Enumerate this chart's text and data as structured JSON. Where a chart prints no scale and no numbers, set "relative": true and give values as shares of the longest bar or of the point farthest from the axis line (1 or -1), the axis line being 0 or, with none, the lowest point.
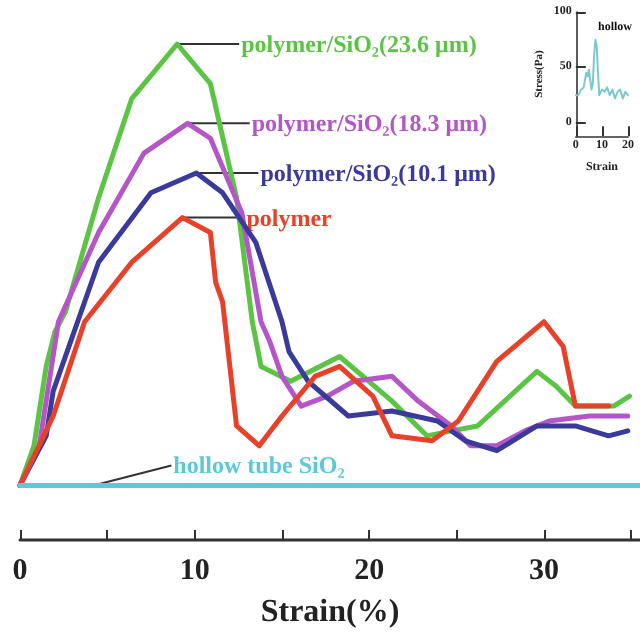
{
  "chart_data": [
    {
      "type": "line",
      "xlabel": "Strain(%)",
      "relative": true,
      "xlim": [
        0,
        35.5
      ],
      "xticks": [
        0,
        {
          "value": 5,
          "label": null
        },
        10,
        {
          "value": 15,
          "label": null
        },
        20,
        {
          "value": 25,
          "label": null
        },
        30,
        {
          "value": 35,
          "label": null
        }
      ],
      "grid": false,
      "legend": false,
      "marker": "none",
      "line_style": "solid",
      "series": [
        {
          "name": "polymer/SiO₂(23.6 μm)",
          "color": "#5cc444",
          "x": [
            0,
            0.8,
            1.5,
            2,
            2.6,
            4.5,
            6.4,
            9,
            10.9,
            12.4,
            13.3,
            13.8,
            15.5,
            18.3,
            21.3,
            23.3,
            24.7,
            26.2,
            29.6,
            30.7,
            31.8,
            32.6,
            34,
            34.9
          ],
          "values": [
            0.11,
            0.19,
            0.35,
            0.42,
            0.46,
            0.69,
            0.89,
            1.0,
            0.92,
            0.69,
            0.44,
            0.35,
            0.32,
            0.37,
            0.28,
            0.21,
            0.22,
            0.23,
            0.34,
            0.31,
            0.27,
            0.27,
            0.27,
            0.29
          ]
        },
        {
          "name": "polymer/SiO₂(18.3 μm)",
          "color": "#b455c8",
          "x": [
            0,
            1.1,
            2.2,
            4.5,
            7.1,
            9.6,
            10.9,
            12.7,
            13.8,
            14.3,
            15,
            16.1,
            17.6,
            19.1,
            21.3,
            22.8,
            24.7,
            25.8,
            27.3,
            28.9,
            30.3,
            32.6,
            34.8
          ],
          "values": [
            0.11,
            0.19,
            0.44,
            0.62,
            0.78,
            0.84,
            0.81,
            0.66,
            0.44,
            0.4,
            0.33,
            0.27,
            0.29,
            0.32,
            0.33,
            0.28,
            0.23,
            0.19,
            0.19,
            0.22,
            0.24,
            0.25,
            0.25
          ]
        },
        {
          "name": "polymer/SiO₂(10.1 μm)",
          "color": "#3a3a9a",
          "x": [
            0,
            1.5,
            1.9,
            4.5,
            7.5,
            10.1,
            11.6,
            13.5,
            15,
            15.4,
            16.5,
            18.8,
            21.3,
            23.9,
            25.5,
            27.3,
            29.6,
            31.8,
            33.7,
            34.8
          ],
          "values": [
            0.11,
            0.21,
            0.3,
            0.56,
            0.7,
            0.74,
            0.7,
            0.6,
            0.44,
            0.38,
            0.32,
            0.25,
            0.26,
            0.24,
            0.2,
            0.18,
            0.23,
            0.23,
            0.21,
            0.22
          ]
        },
        {
          "name": "polymer",
          "color": "#e8412a",
          "x": [
            0,
            1.9,
            3.7,
            6.4,
            9.3,
            10.9,
            11.2,
            11.6,
            12.4,
            13.7,
            15,
            16.9,
            18.3,
            20.2,
            21.3,
            23.6,
            25.1,
            27.3,
            30,
            31.1,
            31.8,
            33.7
          ],
          "values": [
            0.11,
            0.25,
            0.44,
            0.56,
            0.65,
            0.62,
            0.52,
            0.48,
            0.23,
            0.19,
            0.25,
            0.33,
            0.35,
            0.29,
            0.21,
            0.2,
            0.24,
            0.36,
            0.44,
            0.39,
            0.27,
            0.27
          ]
        },
        {
          "name": "hollow tube SiO₂",
          "color": "#5cc8d8",
          "x": [
            0,
            4.2,
            35.5
          ],
          "values": [
            0.11,
            0.11,
            0.11
          ]
        }
      ]
    },
    {
      "type": "line",
      "xlabel": "Strain",
      "ylabel": "Stress(Pa)",
      "annotations": [
        "hollow"
      ],
      "xlim": [
        0,
        20
      ],
      "ylim": [
        -12,
        100
      ],
      "xticks": [
        0,
        10,
        20
      ],
      "yticks": [
        0,
        50,
        100
      ],
      "grid": false,
      "legend": false,
      "marker": "none",
      "series": [
        {
          "color": "#7cc8d0",
          "x": [
            0,
            1,
            2,
            3,
            4,
            4.5,
            5,
            6,
            6.5,
            7,
            7.5,
            8,
            8.5,
            9,
            10,
            11,
            12,
            13,
            14,
            15,
            16,
            17,
            18,
            19,
            20
          ],
          "values": [
            25,
            25,
            30,
            32,
            45,
            42,
            48,
            30,
            35,
            60,
            75,
            70,
            45,
            25,
            30,
            28,
            32,
            25,
            30,
            22,
            28,
            30,
            22,
            28,
            25
          ]
        }
      ]
    }
  ]
}
